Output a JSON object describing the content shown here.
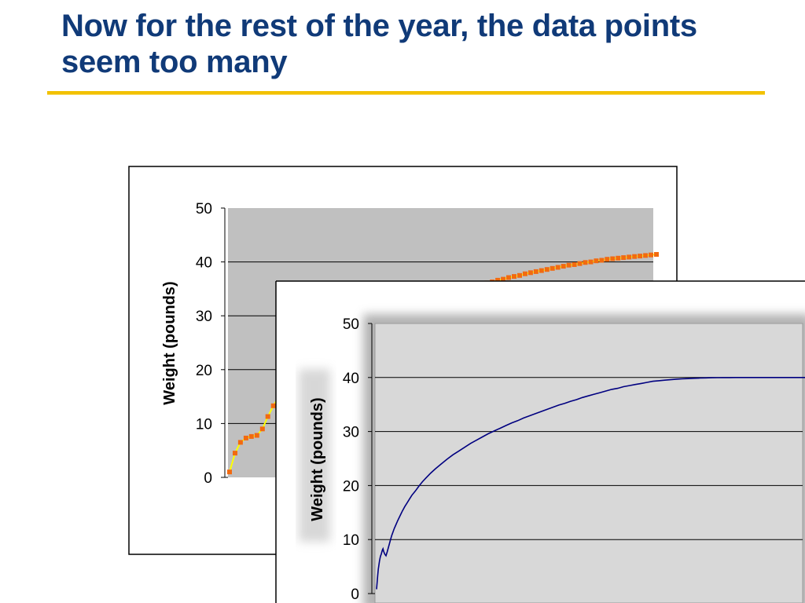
{
  "slide": {
    "title": "Now for the rest of the year, the data points seem too many"
  },
  "colors": {
    "title": "#103a78",
    "title_rule": "#f2c100",
    "chart1_plot_bg": "#c0c0c0",
    "chart1_line": "#ffff00",
    "chart1_markers": "#f26a10",
    "chart2_plot_bg": "#d8d8d8",
    "chart2_line": "#000080",
    "gridlines": "#000000"
  },
  "chart_data": [
    {
      "type": "line",
      "ylabel": "Weight (pounds)",
      "xlabel": "",
      "ylim": [
        0,
        50
      ],
      "yticks": [
        "0",
        "10",
        "20",
        "30",
        "40",
        "50"
      ],
      "grid": true,
      "legend": "none",
      "series": [
        {
          "x": [
            0,
            1,
            2,
            3,
            4,
            5,
            6,
            7,
            8,
            9,
            10,
            11,
            12,
            13,
            14,
            15,
            16,
            17,
            18,
            19,
            20,
            21,
            22,
            23,
            24,
            25,
            26,
            27,
            28,
            29,
            30,
            31,
            32,
            33,
            34,
            35,
            36,
            37,
            38,
            39,
            40,
            41,
            42,
            43,
            44,
            45,
            46,
            47,
            48,
            49,
            50,
            51,
            52,
            53,
            54,
            55,
            56,
            57,
            58,
            59,
            60,
            61,
            62,
            63,
            64,
            65,
            66,
            67,
            68,
            69,
            70,
            71,
            72,
            73,
            74,
            75,
            76,
            77,
            78
          ],
          "values": [
            1.0,
            4.5,
            6.5,
            7.3,
            7.6,
            7.8,
            9.0,
            11.3,
            13.3,
            15.0,
            16.8,
            18.2,
            19.4,
            20.4,
            21.2,
            22.1,
            22.9,
            23.7,
            24.4,
            25.1,
            25.7,
            26.3,
            26.9,
            27.4,
            27.9,
            28.4,
            28.9,
            29.4,
            29.8,
            30.2,
            30.6,
            31.0,
            31.4,
            31.8,
            32.1,
            32.5,
            32.8,
            33.1,
            33.5,
            33.8,
            34.1,
            34.4,
            34.7,
            35.0,
            35.3,
            35.5,
            35.8,
            36.1,
            36.3,
            36.6,
            36.8,
            37.1,
            37.3,
            37.5,
            37.8,
            38.0,
            38.2,
            38.4,
            38.6,
            38.8,
            39.0,
            39.2,
            39.4,
            39.5,
            39.7,
            39.9,
            40.0,
            40.2,
            40.3,
            40.5,
            40.6,
            40.7,
            40.8,
            40.9,
            41.0,
            41.1,
            41.2,
            41.3,
            41.4
          ]
        }
      ]
    },
    {
      "type": "line",
      "ylabel": "Weight (pounds)",
      "xlabel": "",
      "ylim": [
        0,
        50
      ],
      "yticks": [
        "0",
        "10",
        "20",
        "30",
        "40",
        "50"
      ],
      "grid": true,
      "legend": "none",
      "series": [
        {
          "x": [
            0,
            0.5,
            1,
            1.5,
            2,
            2.5,
            3,
            3.5,
            4,
            4.5,
            5,
            5.5,
            6,
            7,
            8,
            9,
            10,
            11,
            12,
            13,
            14,
            15,
            16,
            18,
            20,
            22,
            24,
            26,
            28,
            30,
            33,
            36,
            39,
            42,
            46,
            50,
            55,
            60,
            65,
            70,
            75,
            80,
            85,
            90,
            95,
            100,
            105,
            110,
            115,
            120,
            125,
            130,
            135,
            140,
            145,
            150,
            155,
            160,
            165,
            170,
            175,
            180,
            185,
            190,
            195,
            200,
            205,
            210,
            215,
            220,
            225,
            230,
            235,
            240,
            245,
            250,
            255,
            260,
            265,
            270,
            275,
            280,
            285,
            290,
            295,
            300,
            305,
            310,
            315,
            320,
            325,
            330,
            335,
            340,
            345,
            350,
            355,
            360,
            365
          ],
          "values": [
            0.8,
            2.0,
            3.4,
            4.5,
            5.3,
            6.0,
            6.6,
            7.0,
            7.3,
            7.7,
            8.1,
            8.3,
            7.8,
            7.3,
            7.0,
            7.7,
            8.5,
            9.3,
            10.1,
            10.8,
            11.4,
            12.0,
            12.5,
            13.5,
            14.4,
            15.3,
            16.1,
            16.8,
            17.5,
            18.2,
            19.0,
            19.9,
            20.7,
            21.4,
            22.3,
            23.1,
            24.0,
            24.9,
            25.7,
            26.4,
            27.1,
            27.8,
            28.4,
            29.0,
            29.6,
            30.1,
            30.6,
            31.1,
            31.6,
            32.0,
            32.5,
            32.9,
            33.3,
            33.7,
            34.1,
            34.5,
            34.9,
            35.2,
            35.6,
            35.9,
            36.3,
            36.6,
            36.9,
            37.2,
            37.5,
            37.8,
            38.0,
            38.3,
            38.5,
            38.7,
            38.9,
            39.1,
            39.3,
            39.4,
            39.5,
            39.6,
            39.7,
            39.75,
            39.8,
            39.85,
            39.9,
            39.93,
            39.95,
            39.97,
            39.98,
            39.99,
            40.0,
            40.0,
            40.0,
            40.0,
            40.0,
            40.0,
            40.0,
            40.0,
            40.0,
            40.0,
            40.0,
            40.0,
            40.0
          ]
        }
      ]
    }
  ]
}
